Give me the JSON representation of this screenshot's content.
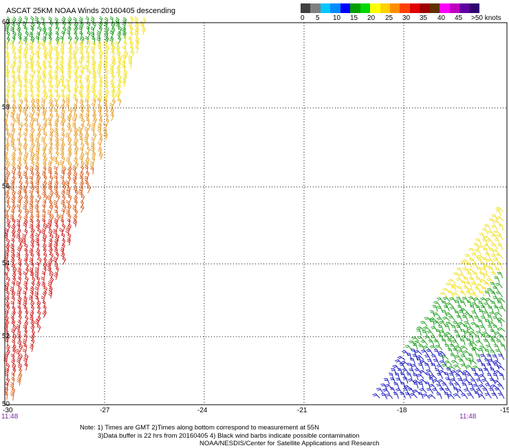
{
  "title": "ASCAT 25KM NOAA Winds 20160405 descending",
  "colorbar": {
    "colors": [
      "#404040",
      "#7f7f7f",
      "#00c8ff",
      "#008cff",
      "#0000ff",
      "#00a000",
      "#00d800",
      "#ffff00",
      "#ffd200",
      "#ff8c00",
      "#ff4000",
      "#e00000",
      "#a00000",
      "#603000",
      "#ff00ff",
      "#c000c0",
      "#6000a0",
      "#300070"
    ],
    "labels": [
      "0",
      "5",
      "10",
      "15",
      "20",
      "25",
      "30",
      "35",
      "40",
      "45",
      ">50 knots"
    ]
  },
  "map": {
    "lat_labels": [
      "60",
      "58",
      "56",
      "54",
      "52",
      "50"
    ],
    "lon_labels": [
      "-30",
      "-27",
      "-24",
      "-21",
      "-18",
      "-15"
    ],
    "time_labels": [
      "11:48",
      "11:48"
    ]
  },
  "barb_colors": {
    "green": "#1f9e1f",
    "yellow": "#f0e020",
    "orange": "#e8a030",
    "dark_orange": "#d86020",
    "red": "#d02828",
    "blue": "#1818c0"
  },
  "note": {
    "line1": "Note: 1) Times are GMT 2)Times along bottom correspond to measurement at 55N",
    "line2": "3)Data buffer is 22 hrs from 20160405 4) Black wind barbs indicate possible contamination",
    "line3": "NOAA/NESDIS/Center for Satellite Applications and Research"
  }
}
